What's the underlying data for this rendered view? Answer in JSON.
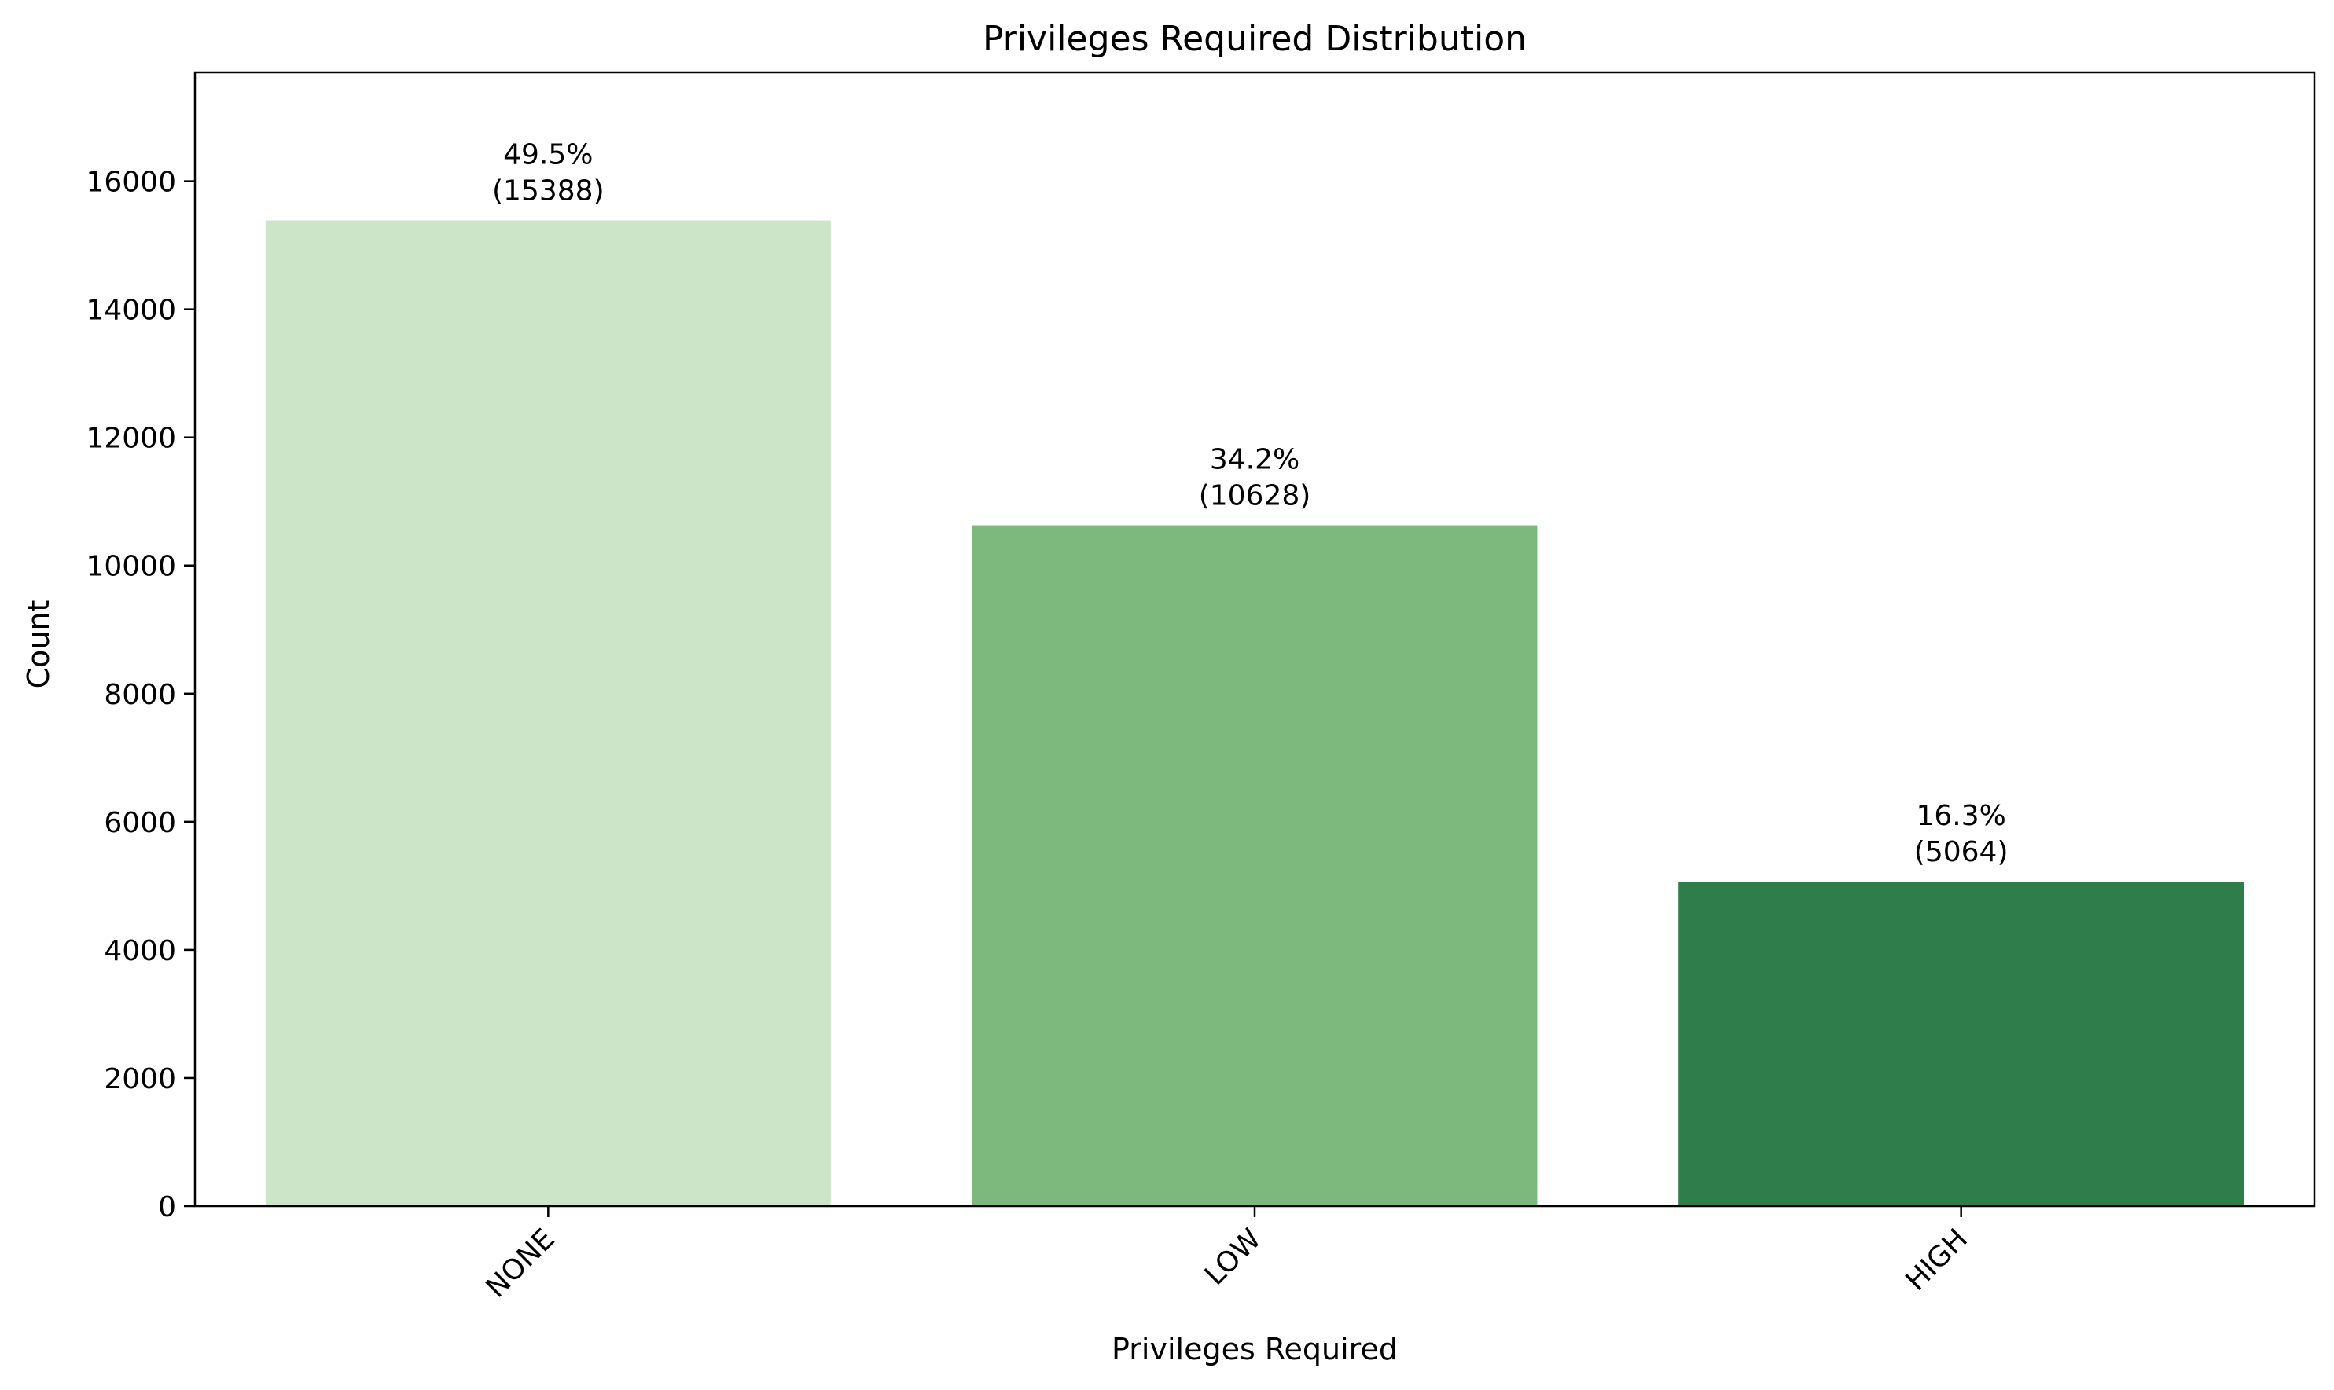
{
  "chart_data": {
    "type": "bar",
    "title": "Privileges Required Distribution",
    "xlabel": "Privileges Required",
    "ylabel": "Count",
    "categories": [
      "NONE",
      "LOW",
      "HIGH"
    ],
    "values": [
      15388,
      10628,
      5064
    ],
    "percent_labels": [
      "49.5%",
      "34.2%",
      "16.3%"
    ],
    "count_labels": [
      "(15388)",
      "(10628)",
      "(5064)"
    ],
    "colors": [
      "#cce4c7",
      "#7db97d",
      "#2e7d4a"
    ],
    "ylim": [
      0,
      17700
    ],
    "yticks": [
      0,
      2000,
      4000,
      6000,
      8000,
      10000,
      12000,
      14000,
      16000
    ],
    "ytick_labels": [
      "0",
      "2000",
      "4000",
      "6000",
      "8000",
      "10000",
      "12000",
      "14000",
      "16000"
    ],
    "grid": false,
    "legend": "none",
    "xtick_rotation_deg": 45
  }
}
